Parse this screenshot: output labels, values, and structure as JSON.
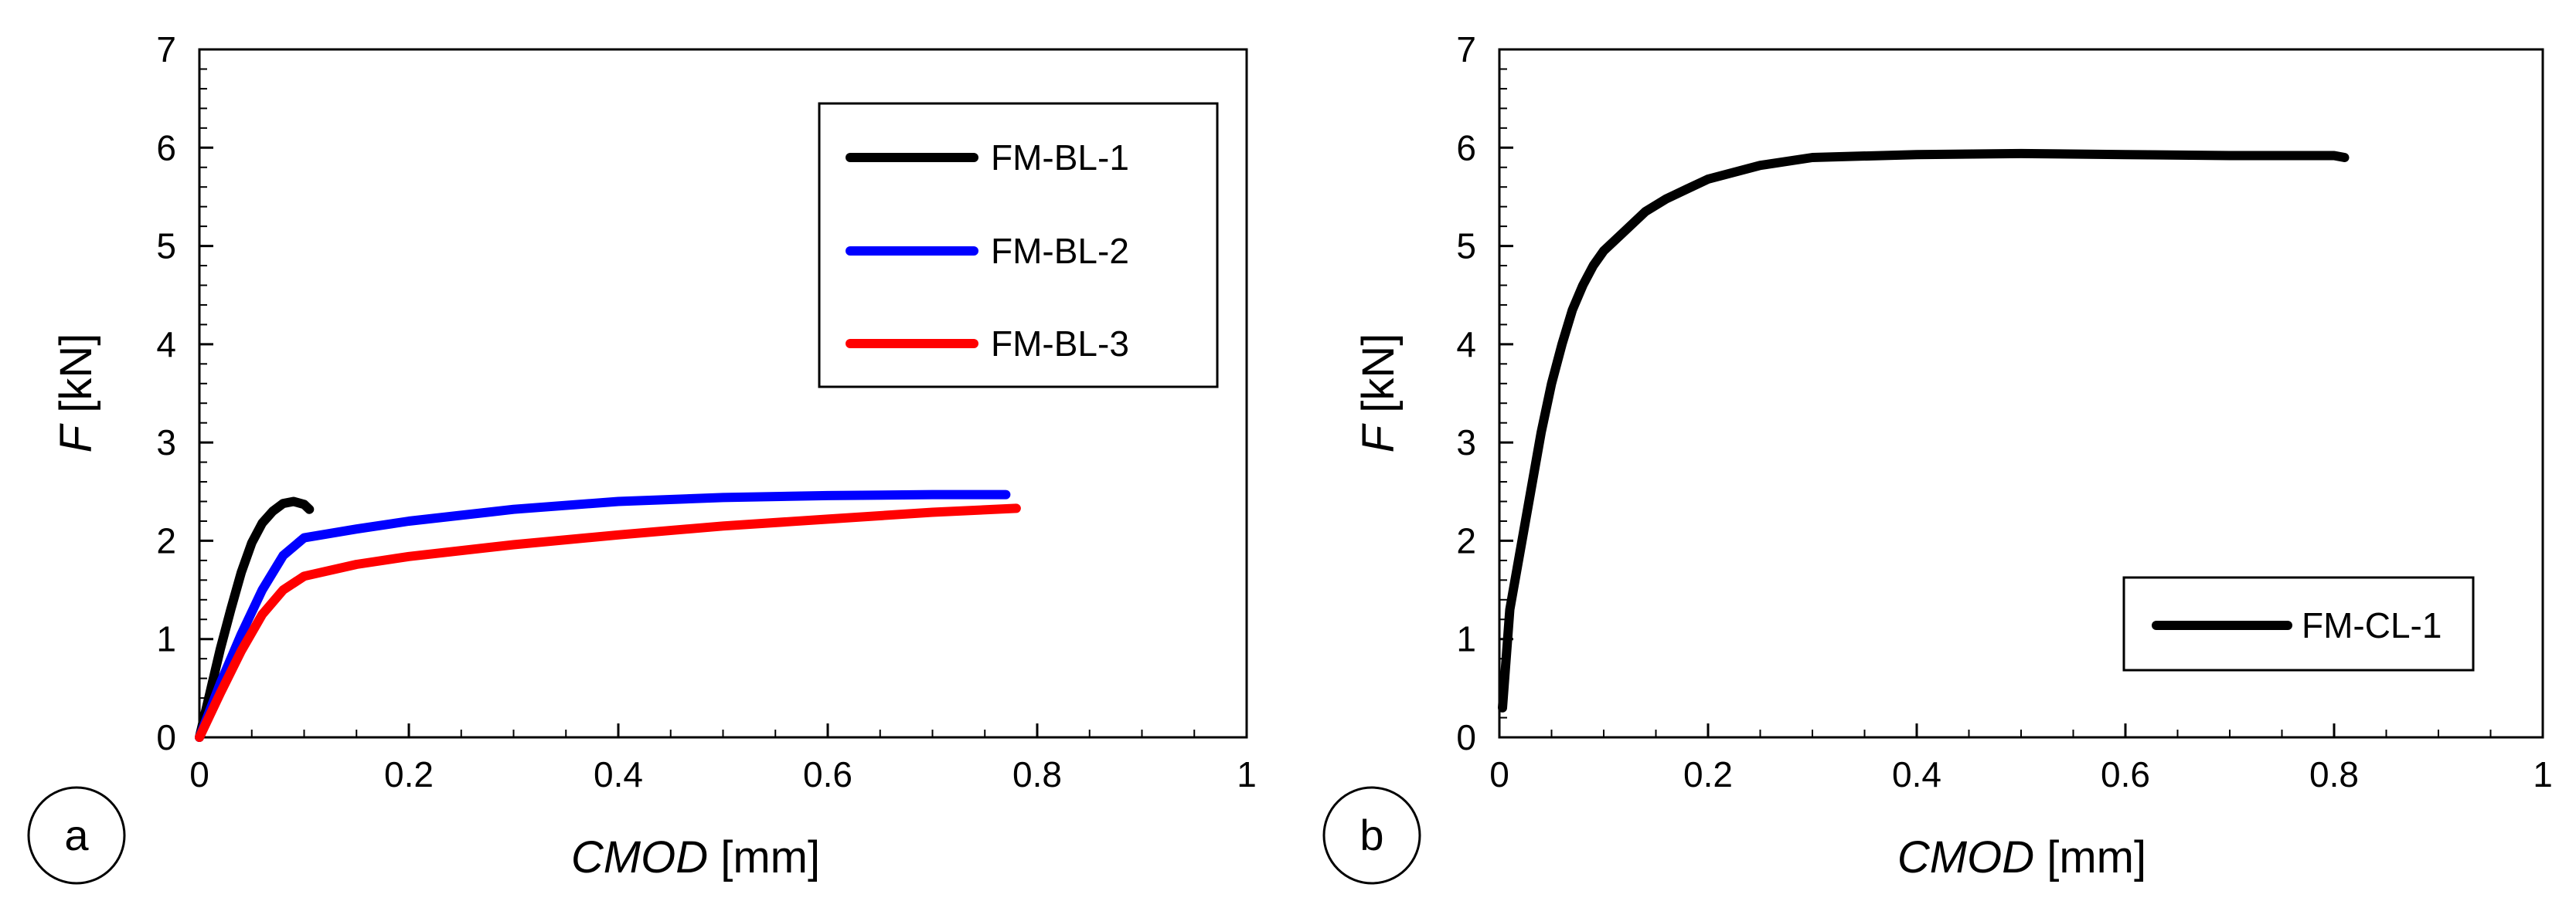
{
  "colors": {
    "black": "#000000",
    "blue": "#0000ff",
    "red": "#ff0000",
    "frame": "#000000",
    "background": "#ffffff"
  },
  "chart_data": [
    {
      "type": "line",
      "panel_label": "a",
      "xlabel_italic": "CMOD",
      "xlabel_unit": " [mm]",
      "ylabel_italic": "F",
      "ylabel_unit": " [kN]",
      "xlim": [
        0,
        1
      ],
      "ylim": [
        0,
        7
      ],
      "x_ticks": [
        0,
        0.2,
        0.4,
        0.6,
        0.8,
        1
      ],
      "x_tick_labels": [
        "0",
        "0.2",
        "0.4",
        "0.6",
        "0.8",
        "1"
      ],
      "y_ticks": [
        0,
        1,
        2,
        3,
        4,
        5,
        6,
        7
      ],
      "y_tick_labels": [
        "0",
        "1",
        "2",
        "3",
        "4",
        "5",
        "6",
        "7"
      ],
      "grid": false,
      "legend_position": "top-right",
      "series": [
        {
          "name": "FM-BL-1",
          "color": "#000000",
          "x": [
            0,
            0.01,
            0.02,
            0.03,
            0.04,
            0.05,
            0.06,
            0.07,
            0.08,
            0.09,
            0.1,
            0.105
          ],
          "y": [
            0,
            0.45,
            0.9,
            1.3,
            1.68,
            1.98,
            2.18,
            2.3,
            2.38,
            2.4,
            2.37,
            2.32
          ]
        },
        {
          "name": "FM-BL-2",
          "color": "#0000ff",
          "x": [
            0,
            0.02,
            0.04,
            0.06,
            0.08,
            0.1,
            0.15,
            0.2,
            0.3,
            0.4,
            0.5,
            0.6,
            0.7,
            0.77
          ],
          "y": [
            0,
            0.55,
            1.05,
            1.5,
            1.85,
            2.03,
            2.12,
            2.2,
            2.32,
            2.4,
            2.44,
            2.46,
            2.47,
            2.47
          ]
        },
        {
          "name": "FM-BL-3",
          "color": "#ff0000",
          "x": [
            0,
            0.02,
            0.04,
            0.06,
            0.08,
            0.1,
            0.15,
            0.2,
            0.3,
            0.4,
            0.5,
            0.6,
            0.7,
            0.78
          ],
          "y": [
            0,
            0.45,
            0.88,
            1.25,
            1.5,
            1.64,
            1.76,
            1.84,
            1.96,
            2.06,
            2.15,
            2.22,
            2.29,
            2.33
          ]
        }
      ]
    },
    {
      "type": "line",
      "panel_label": "b",
      "xlabel_italic": "CMOD",
      "xlabel_unit": " [mm]",
      "ylabel_italic": "F",
      "ylabel_unit": " [kN]",
      "xlim": [
        0,
        1
      ],
      "ylim": [
        0,
        7
      ],
      "x_ticks": [
        0,
        0.2,
        0.4,
        0.6,
        0.8,
        1
      ],
      "x_tick_labels": [
        "0",
        "0.2",
        "0.4",
        "0.6",
        "0.8",
        "1"
      ],
      "y_ticks": [
        0,
        1,
        2,
        3,
        4,
        5,
        6,
        7
      ],
      "y_tick_labels": [
        "0",
        "1",
        "2",
        "3",
        "4",
        "5",
        "6",
        "7"
      ],
      "grid": false,
      "legend_position": "bottom-right",
      "series": [
        {
          "name": "FM-CL-1",
          "color": "#000000",
          "x": [
            0.003,
            0.01,
            0.02,
            0.03,
            0.04,
            0.05,
            0.06,
            0.07,
            0.08,
            0.09,
            0.1,
            0.12,
            0.14,
            0.16,
            0.18,
            0.2,
            0.25,
            0.3,
            0.4,
            0.5,
            0.6,
            0.7,
            0.8,
            0.81
          ],
          "y": [
            0.3,
            1.3,
            1.9,
            2.5,
            3.1,
            3.6,
            4.0,
            4.35,
            4.6,
            4.8,
            4.95,
            5.15,
            5.35,
            5.48,
            5.58,
            5.68,
            5.82,
            5.9,
            5.93,
            5.94,
            5.93,
            5.92,
            5.92,
            5.9
          ]
        }
      ]
    }
  ]
}
